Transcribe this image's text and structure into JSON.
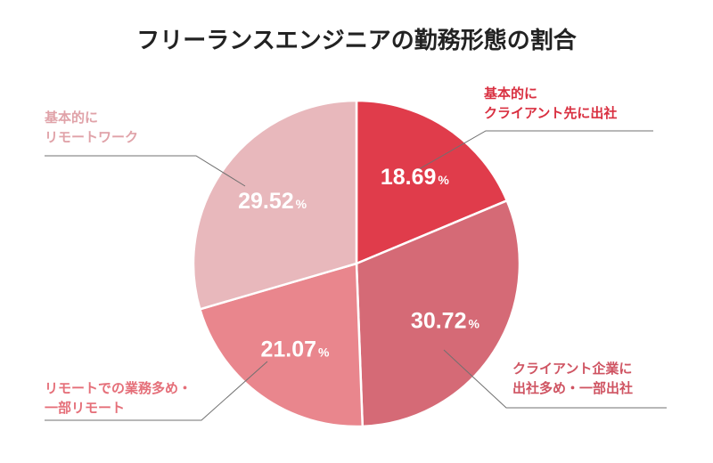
{
  "chart_data": {
    "type": "pie",
    "title": "フリーランスエンジニアの勤務形態の割合",
    "unit": "%",
    "slices": [
      {
        "label_lines": [
          "基本的に",
          "クライアント先に出社"
        ],
        "value": 18.69,
        "value_text": "18.69",
        "color": "#e03c4b",
        "label_color": "#d92f40"
      },
      {
        "label_lines": [
          "クライアント企業に",
          "出社多め・一部出社"
        ],
        "value": 30.72,
        "value_text": "30.72",
        "color": "#d56a76",
        "label_color": "#cf5462"
      },
      {
        "label_lines": [
          "リモートでの業務多め・",
          "一部リモート"
        ],
        "value": 21.07,
        "value_text": "21.07",
        "color": "#e9868d",
        "label_color": "#e56f79"
      },
      {
        "label_lines": [
          "基本的に",
          "リモートワーク"
        ],
        "value": 29.52,
        "value_text": "29.52",
        "color": "#e8b8bc",
        "label_color": "#e0a2a8"
      }
    ]
  }
}
